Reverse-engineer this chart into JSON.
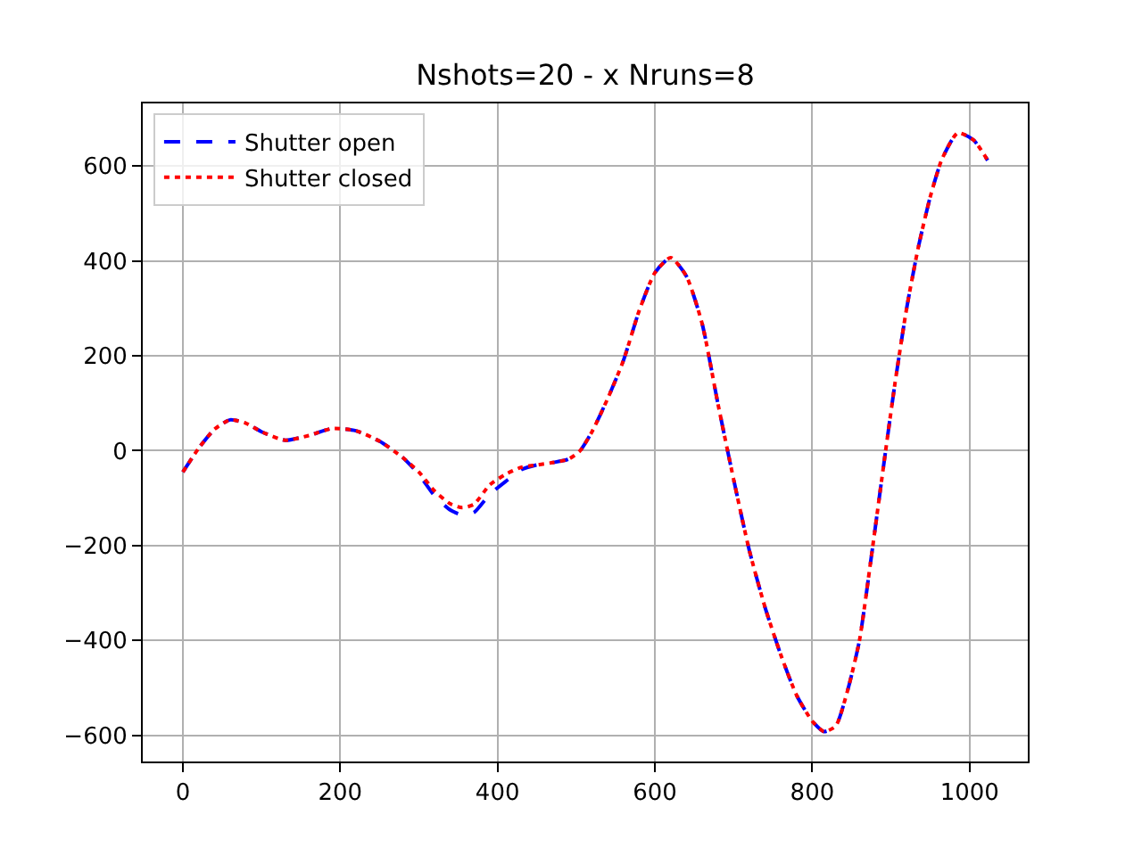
{
  "chart_data": {
    "type": "line",
    "title": "Nshots=20 - x Nruns=8",
    "x": [
      0,
      20,
      40,
      60,
      80,
      100,
      130,
      160,
      190,
      220,
      250,
      280,
      300,
      320,
      340,
      355,
      370,
      390,
      410,
      430,
      450,
      470,
      490,
      505,
      520,
      540,
      560,
      580,
      600,
      620,
      640,
      660,
      680,
      700,
      720,
      740,
      760,
      780,
      800,
      815,
      830,
      845,
      860,
      875,
      890,
      905,
      920,
      935,
      950,
      965,
      985,
      1005,
      1023
    ],
    "series": [
      {
        "name": "Shutter open",
        "color": "#0000ff",
        "line_style": "dashed",
        "values": [
          -45,
          5,
          45,
          65,
          58,
          40,
          22,
          32,
          47,
          42,
          20,
          -15,
          -50,
          -95,
          -125,
          -135,
          -130,
          -92,
          -65,
          -40,
          -30,
          -25,
          -18,
          0,
          40,
          110,
          190,
          295,
          375,
          407,
          368,
          268,
          100,
          -60,
          -210,
          -330,
          -430,
          -515,
          -570,
          -592,
          -580,
          -505,
          -400,
          -225,
          -40,
          140,
          300,
          430,
          535,
          615,
          670,
          655,
          612
        ]
      },
      {
        "name": "Shutter closed",
        "color": "#ff0000",
        "line_style": "dotted",
        "values": [
          -45,
          5,
          45,
          65,
          58,
          40,
          22,
          32,
          47,
          42,
          20,
          -15,
          -45,
          -85,
          -112,
          -120,
          -113,
          -72,
          -50,
          -35,
          -30,
          -25,
          -18,
          0,
          40,
          110,
          190,
          295,
          375,
          407,
          368,
          268,
          100,
          -60,
          -210,
          -330,
          -430,
          -515,
          -570,
          -592,
          -580,
          -505,
          -400,
          -225,
          -40,
          140,
          300,
          430,
          535,
          615,
          670,
          655,
          612
        ]
      }
    ],
    "xlim": [
      -51,
      1074
    ],
    "ylim": [
      -655,
      732
    ],
    "xticks": [
      0,
      200,
      400,
      600,
      800,
      1000
    ],
    "yticks": [
      -600,
      -400,
      -200,
      0,
      200,
      400,
      600
    ],
    "grid": true,
    "legend": "top left"
  }
}
